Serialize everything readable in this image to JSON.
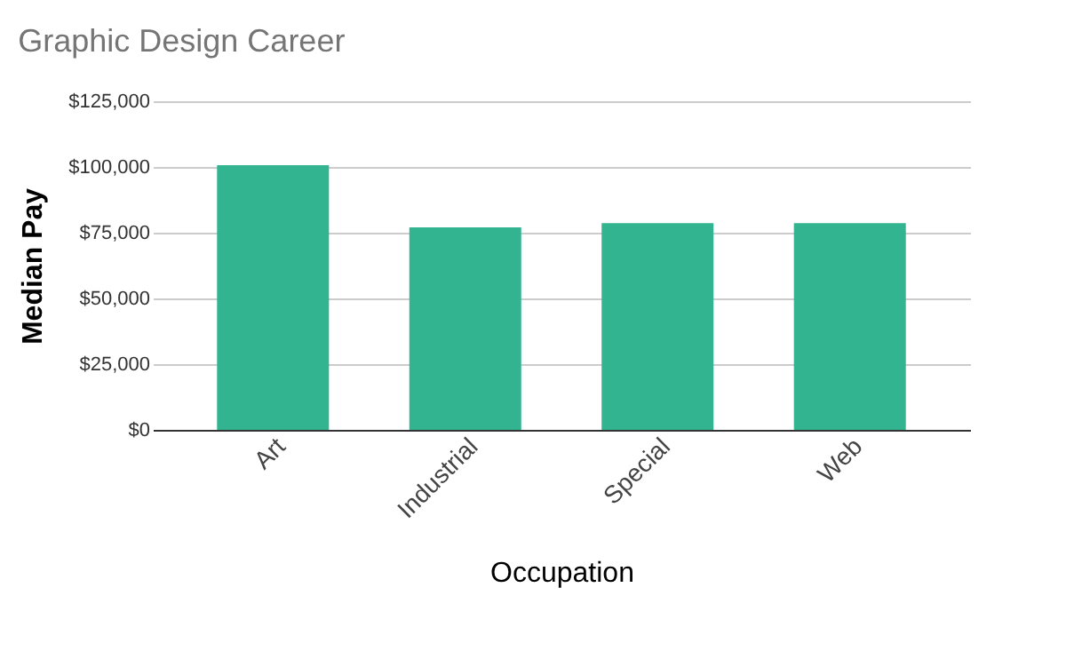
{
  "chart_data": {
    "type": "bar",
    "title": "Graphic Design Career",
    "xlabel": "Occupation",
    "ylabel": "Median Pay",
    "categories": [
      "Art",
      "Industrial",
      "Special",
      "Web"
    ],
    "values": [
      100700,
      77000,
      78600,
      78600
    ],
    "color": "#33b491",
    "ylim": [
      0,
      125000
    ],
    "yticks": [
      {
        "value": 0,
        "label": "$0"
      },
      {
        "value": 25000,
        "label": "$25,000"
      },
      {
        "value": 50000,
        "label": "$50,000"
      },
      {
        "value": 75000,
        "label": "$75,000"
      },
      {
        "value": 100000,
        "label": "$100,000"
      },
      {
        "value": 125000,
        "label": "$125,000"
      }
    ],
    "grid": "y"
  }
}
